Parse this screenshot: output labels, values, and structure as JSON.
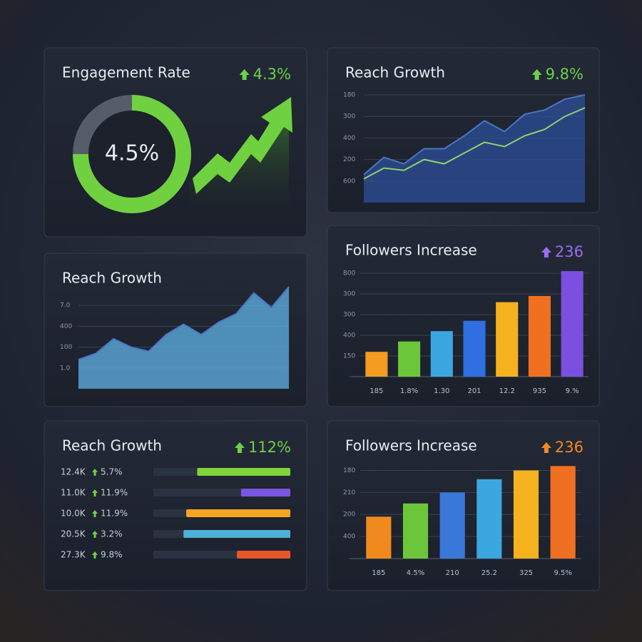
{
  "chart_data": [
    {
      "type": "donut",
      "title": "Engagement Rate",
      "change": "4.3%",
      "change_color": "#6cd14a",
      "center_label": "4.5%"
    },
    {
      "type": "area",
      "title": "Reach Growth",
      "change": "9.8%",
      "change_color": "#6cd14a",
      "categories": [
        null,
        null,
        null,
        null,
        null,
        null,
        null,
        null,
        null,
        null,
        null,
        null
      ],
      "ylim": [
        0,
        5
      ],
      "yticks": [
        {
          "value": 5,
          "label": "180"
        },
        {
          "value": 4,
          "label": "300"
        },
        {
          "value": 3,
          "label": "400"
        },
        {
          "value": 2,
          "label": "200"
        },
        {
          "value": 1,
          "label": "600"
        }
      ],
      "grid": true,
      "series": [
        {
          "color": "#2c4f9a",
          "values": [
            1.3,
            2.1,
            1.8,
            2.5,
            2.5,
            3.1,
            3.8,
            3.3,
            4.1,
            4.3,
            4.8,
            5.0
          ]
        },
        {
          "color": "#8fd36b",
          "values": [
            1.1,
            1.6,
            1.5,
            2.0,
            1.8,
            2.3,
            2.8,
            2.6,
            3.1,
            3.4,
            4.0,
            4.4
          ]
        }
      ]
    },
    {
      "type": "area",
      "title": "Reach Growth",
      "categories": [
        null,
        null,
        null,
        null,
        null,
        null,
        null,
        null,
        null,
        null,
        null,
        null,
        null
      ],
      "ylim": [
        0,
        5
      ],
      "yticks": [
        {
          "value": 4,
          "label": "7.0"
        },
        {
          "value": 3,
          "label": "400"
        },
        {
          "value": 2,
          "label": "100"
        },
        {
          "value": 1,
          "label": "1.0"
        }
      ],
      "grid": true,
      "series": [
        {
          "color": "#5fb3e6",
          "values": [
            1.4,
            1.7,
            2.4,
            2.0,
            1.8,
            2.6,
            3.1,
            2.6,
            3.2,
            3.6,
            4.6,
            3.9,
            4.9
          ]
        }
      ]
    },
    {
      "type": "bar",
      "title": "Followers Increase",
      "change": "236",
      "change_color": "#9b6cf0",
      "categories": [
        "185",
        "1.8%",
        "1.30",
        "201",
        "12.2",
        "935",
        "9.%"
      ],
      "values": [
        1.2,
        1.7,
        2.2,
        2.7,
        3.6,
        3.9,
        5.1
      ],
      "colors": [
        "#f39c1f",
        "#6cc63a",
        "#3ba7e0",
        "#2f6fe0",
        "#f5b21e",
        "#f07022",
        "#7b4fe0"
      ],
      "ylim": [
        0,
        5
      ],
      "yticks": [
        {
          "value": 5,
          "label": "800"
        },
        {
          "value": 4,
          "label": "300"
        },
        {
          "value": 3,
          "label": "300"
        },
        {
          "value": 2,
          "label": "400"
        },
        {
          "value": 1,
          "label": "150"
        }
      ],
      "grid": true
    },
    {
      "type": "hbar",
      "title": "Reach Growth",
      "change": "112%",
      "change_color": "#6cd14a",
      "rows": [
        {
          "label": "12.4K",
          "pct": "5.7%"
        },
        {
          "label": "11.0K",
          "pct": "11.9%"
        },
        {
          "label": "10.0K",
          "pct": "11.9%"
        },
        {
          "label": "20.5K",
          "pct": "3.2%"
        },
        {
          "label": "27.3K",
          "pct": "9.8%"
        }
      ],
      "values": [
        68,
        36,
        76,
        78,
        39
      ],
      "colors": [
        "#7fd43a",
        "#7a55e0",
        "#f5a623",
        "#4fb0d8",
        "#e8562a"
      ],
      "xlim": [
        0,
        100
      ]
    },
    {
      "type": "bar",
      "title": "Followers Increase",
      "change": "236",
      "change_color": "#f08a24",
      "categories": [
        "185",
        "4.5%",
        "210",
        "25.2",
        "325",
        "9.5%"
      ],
      "values": [
        1.9,
        2.5,
        3.0,
        3.6,
        4.0,
        4.2
      ],
      "colors": [
        "#f08a1e",
        "#6cc63a",
        "#3a78d8",
        "#3ba7e0",
        "#f5b21e",
        "#f07022"
      ],
      "ylim": [
        0,
        4.5
      ],
      "yticks": [
        {
          "value": 4,
          "label": "180"
        },
        {
          "value": 3,
          "label": "210"
        },
        {
          "value": 2,
          "label": "200"
        },
        {
          "value": 1,
          "label": "400"
        }
      ],
      "grid": true
    }
  ]
}
